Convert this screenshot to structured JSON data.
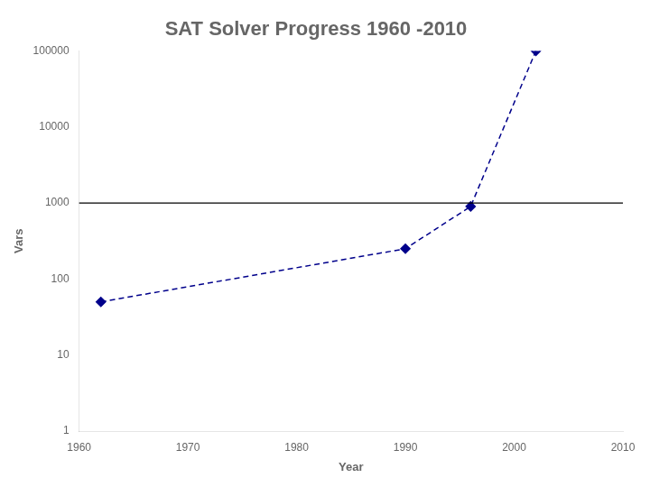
{
  "chart_data": {
    "type": "line",
    "title": "SAT Solver Progress 1960 -2010",
    "xlabel": "Year",
    "ylabel": "Vars",
    "x": [
      1962,
      1990,
      1996,
      2002
    ],
    "values": [
      50,
      250,
      900,
      100000
    ],
    "color": "#00008B",
    "marker": "diamond",
    "line_style": "dashed",
    "xlim": [
      1960,
      2010
    ],
    "ylim": [
      1,
      100000
    ],
    "xticks": [
      1960,
      1970,
      1980,
      1990,
      2000,
      2010
    ],
    "yticks": [
      1,
      10,
      100,
      1000,
      10000,
      100000
    ],
    "log": "y",
    "grid": false,
    "hline": {
      "value": 1000,
      "color": "#000000"
    }
  }
}
